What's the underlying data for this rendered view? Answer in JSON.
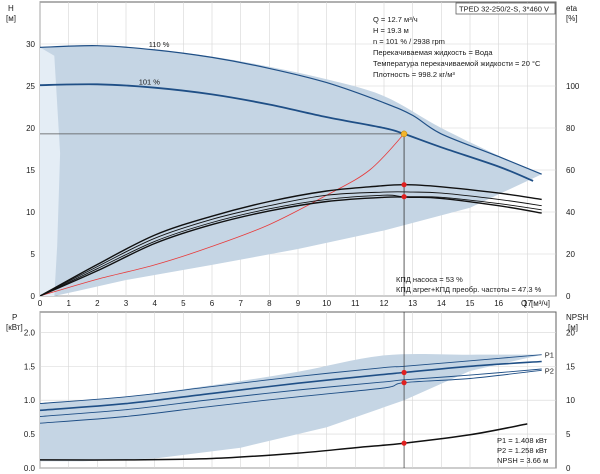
{
  "title_box": "TPED 32-250/2-S, 3*460 V",
  "info_lines": [
    "Q = 12.7 м³/ч",
    "H = 19.3 м",
    "n = 101 % / 2938 rpm",
    "Перекачиваемая жидкость = Вода",
    "Температура перекачиваемой жидкости = 20 °C",
    "Плотность = 998.2 кг/м³"
  ],
  "efficiency_lines": [
    "КПД насоса = 53 %",
    "КПД агрег+КПД преобр. частоты = 47.3 %"
  ],
  "power_lines": [
    "P1 = 1.408 кВт",
    "P2 = 1.258 кВт",
    "NPSH = 3.66 м"
  ],
  "colors": {
    "band": "#c5d5e4",
    "band_light": "#e4edf5",
    "curve": "#1f4f86",
    "system": "#e83a3a",
    "marker": "#e02020",
    "operating": "#f3b42c"
  },
  "chart_data": [
    {
      "type": "line",
      "panel": "head",
      "ylabel": "H",
      "yunit": "[м]",
      "y2label": "eta",
      "y2unit": "[%]",
      "xlabel": "Q",
      "xunit": "[м³/ч]",
      "xlim": [
        0,
        18
      ],
      "ylim": [
        0,
        35
      ],
      "y2lim": [
        0,
        140
      ],
      "xticks": [
        0,
        1,
        2,
        3,
        4,
        5,
        6,
        7,
        8,
        9,
        10,
        11,
        12,
        13,
        14,
        15,
        16,
        17
      ],
      "yticks": [
        0,
        5,
        10,
        15,
        20,
        25,
        30
      ],
      "y2ticks": [
        0,
        20,
        40,
        60,
        80,
        100
      ],
      "envelope": {
        "upper": [
          [
            0,
            29.6
          ],
          [
            1,
            29.8
          ],
          [
            2,
            29.8
          ],
          [
            4,
            29.3
          ],
          [
            6,
            28.5
          ],
          [
            8,
            27.3
          ],
          [
            10,
            25.8
          ],
          [
            12,
            23.8
          ],
          [
            14,
            20.0
          ],
          [
            16,
            16.7
          ],
          [
            17.5,
            14.5
          ]
        ],
        "lower": [
          [
            17.5,
            14.5
          ],
          [
            15,
            10.5
          ],
          [
            12,
            7.8
          ],
          [
            9,
            5.6
          ],
          [
            6,
            3.7
          ],
          [
            3,
            1.9
          ],
          [
            1.3,
            0.6
          ],
          [
            0.5,
            0
          ]
        ],
        "left_strip": [
          [
            0,
            29.6
          ],
          [
            0.5,
            28.6
          ],
          [
            0.7,
            17
          ],
          [
            0.6,
            6
          ],
          [
            0.5,
            0
          ],
          [
            0,
            0
          ]
        ]
      },
      "series": [
        {
          "name": "110 %",
          "role": "head",
          "points": [
            [
              0,
              29.6
            ],
            [
              2,
              29.8
            ],
            [
              4,
              29.3
            ],
            [
              6,
              28.4
            ],
            [
              8,
              27.1
            ],
            [
              10,
              25.4
            ],
            [
              12,
              23.0
            ],
            [
              13,
              21.5
            ],
            [
              14,
              19.3
            ],
            [
              16,
              16.6
            ],
            [
              17.5,
              14.5
            ]
          ]
        },
        {
          "name": "101 %",
          "role": "head",
          "points": [
            [
              0,
              25.1
            ],
            [
              2,
              25.2
            ],
            [
              4,
              24.8
            ],
            [
              6,
              24.0
            ],
            [
              8,
              22.8
            ],
            [
              10,
              21.3
            ],
            [
              12,
              20.0
            ],
            [
              12.7,
              19.3
            ],
            [
              14,
              17.7
            ],
            [
              16,
              15.4
            ],
            [
              17.2,
              13.7
            ]
          ]
        },
        {
          "role": "system",
          "points": [
            [
              0,
              0
            ],
            [
              2,
              2.0
            ],
            [
              4,
              3.7
            ],
            [
              6,
              5.9
            ],
            [
              8,
              8.5
            ],
            [
              10,
              12.0
            ],
            [
              11.5,
              15.0
            ],
            [
              12.7,
              19.3
            ]
          ]
        },
        {
          "role": "eta",
          "axis": "y2",
          "points": [
            [
              0,
              0
            ],
            [
              2,
              15
            ],
            [
              4,
              29
            ],
            [
              6,
              38
            ],
            [
              8,
              45
            ],
            [
              10,
              50
            ],
            [
              11.5,
              52
            ],
            [
              12.7,
              53
            ],
            [
              14,
              52
            ],
            [
              16,
              49
            ],
            [
              17.5,
              46
            ]
          ]
        },
        {
          "role": "eta",
          "axis": "y2",
          "points": [
            [
              0,
              0
            ],
            [
              2,
              14
            ],
            [
              4,
              27.5
            ],
            [
              6,
              36.5
            ],
            [
              8,
              43
            ],
            [
              10,
              48
            ],
            [
              12,
              49.5
            ],
            [
              13,
              49.5
            ],
            [
              14,
              49
            ],
            [
              16,
              46
            ],
            [
              17.5,
              43
            ]
          ]
        },
        {
          "role": "eta",
          "axis": "y2",
          "points": [
            [
              0,
              0
            ],
            [
              2,
              13
            ],
            [
              4,
              26
            ],
            [
              6,
              35
            ],
            [
              8,
              41.5
            ],
            [
              10,
              46
            ],
            [
              12,
              48
            ],
            [
              12.7,
              47.3
            ],
            [
              14,
              47
            ],
            [
              16,
              44
            ],
            [
              17.5,
              41
            ]
          ]
        },
        {
          "role": "eta",
          "axis": "y2",
          "points": [
            [
              0,
              0
            ],
            [
              2,
              12
            ],
            [
              4,
              25
            ],
            [
              6,
              34
            ],
            [
              8,
              40.5
            ],
            [
              10,
              45
            ],
            [
              12,
              47
            ],
            [
              13,
              47
            ],
            [
              14,
              46.5
            ],
            [
              16,
              43
            ],
            [
              17.5,
              39.5
            ]
          ]
        }
      ],
      "operating_point": {
        "q": 12.7,
        "h": 19.3,
        "eta": 53,
        "eta_total": 47.3
      }
    },
    {
      "type": "line",
      "panel": "power",
      "ylabel": "P",
      "yunit": "[кВт]",
      "y2label": "NPSH",
      "y2unit": "[м]",
      "xlim": [
        0,
        18
      ],
      "ylim": [
        0,
        2.3
      ],
      "y2lim": [
        0,
        23
      ],
      "yticks": [
        0,
        0.5,
        1.0,
        1.5,
        2.0
      ],
      "ytick_labels": [
        "0.0",
        "0.5",
        "1.0",
        "1.5",
        "2.0"
      ],
      "y2ticks": [
        0,
        5,
        10,
        15,
        20
      ],
      "envelope": {
        "upper": [
          [
            0,
            0.95
          ],
          [
            3,
            1.05
          ],
          [
            6,
            1.22
          ],
          [
            9,
            1.42
          ],
          [
            12,
            1.66
          ],
          [
            15,
            1.67
          ],
          [
            17.5,
            1.67
          ]
        ],
        "lower": [
          [
            17.5,
            1.67
          ],
          [
            15,
            1.43
          ],
          [
            12.7,
            1.0
          ],
          [
            10,
            0.6
          ],
          [
            7,
            0.3
          ],
          [
            4,
            0.14
          ],
          [
            1.5,
            0.1
          ],
          [
            0,
            0.1
          ]
        ]
      },
      "series": [
        {
          "name": "P1",
          "role": "power",
          "points": [
            [
              0,
              0.95
            ],
            [
              3,
              1.05
            ],
            [
              6,
              1.2
            ],
            [
              9,
              1.35
            ],
            [
              12,
              1.48
            ],
            [
              12.7,
              1.5
            ],
            [
              15,
              1.58
            ],
            [
              17.5,
              1.67
            ]
          ]
        },
        {
          "role": "power",
          "points": [
            [
              0,
              0.85
            ],
            [
              3,
              0.95
            ],
            [
              6,
              1.1
            ],
            [
              9,
              1.25
            ],
            [
              12,
              1.38
            ],
            [
              12.7,
              1.408
            ],
            [
              15,
              1.5
            ],
            [
              17.5,
              1.57
            ]
          ]
        },
        {
          "role": "power",
          "points": [
            [
              0,
              0.76
            ],
            [
              3,
              0.86
            ],
            [
              6,
              1.01
            ],
            [
              9,
              1.15
            ],
            [
              12,
              1.27
            ],
            [
              12.7,
              1.3
            ],
            [
              15,
              1.37
            ],
            [
              17.5,
              1.46
            ]
          ]
        },
        {
          "name": "P2",
          "role": "power",
          "points": [
            [
              0,
              0.66
            ],
            [
              3,
              0.76
            ],
            [
              6,
              0.91
            ],
            [
              9,
              1.05
            ],
            [
              12,
              1.18
            ],
            [
              12.7,
              1.258
            ],
            [
              15,
              1.32
            ],
            [
              17.5,
              1.44
            ]
          ]
        },
        {
          "role": "npsh",
          "axis": "y2",
          "points": [
            [
              0,
              1.2
            ],
            [
              3,
              1.2
            ],
            [
              6,
              1.4
            ],
            [
              9,
              2.2
            ],
            [
              11,
              3.0
            ],
            [
              12.7,
              3.66
            ],
            [
              15,
              4.9
            ],
            [
              17,
              6.5
            ]
          ]
        }
      ],
      "markers": [
        {
          "q": 12.7,
          "p": 1.408
        },
        {
          "q": 12.7,
          "p": 1.258
        },
        {
          "q": 12.7,
          "npsh": 3.66
        }
      ]
    }
  ]
}
